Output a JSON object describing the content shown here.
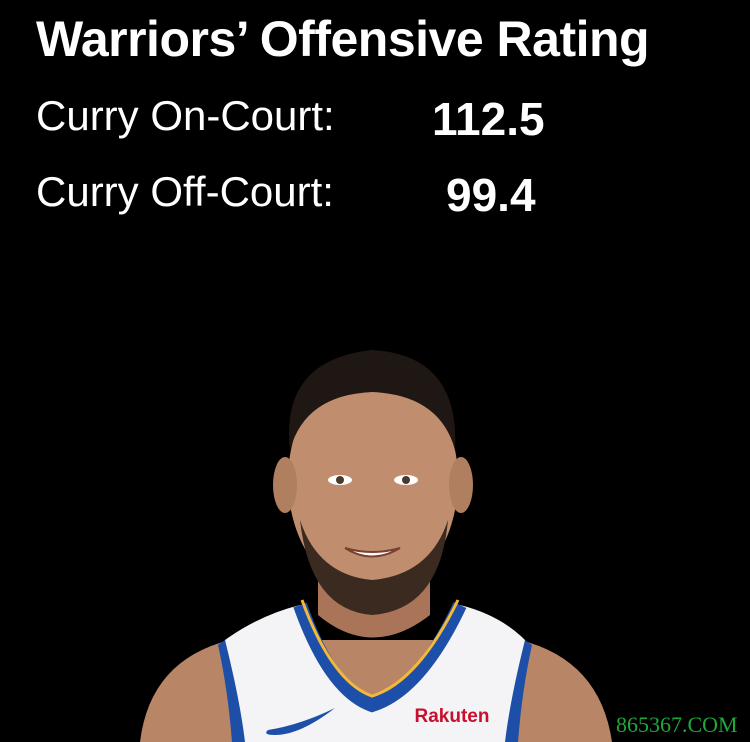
{
  "title": "Warriors’ Offensive Rating",
  "stats": [
    {
      "label": "Curry On-Court:",
      "value": "112.5"
    },
    {
      "label": "Curry Off-Court:",
      "value": "99.4"
    }
  ],
  "jersey_sponsor": "Rakuten",
  "watermark": "865367.COM",
  "colors": {
    "background": "#000000",
    "text": "#ffffff",
    "jersey_blue": "#1d4fa8",
    "jersey_gold": "#f3b73a",
    "watermark": "#1fa83a"
  }
}
